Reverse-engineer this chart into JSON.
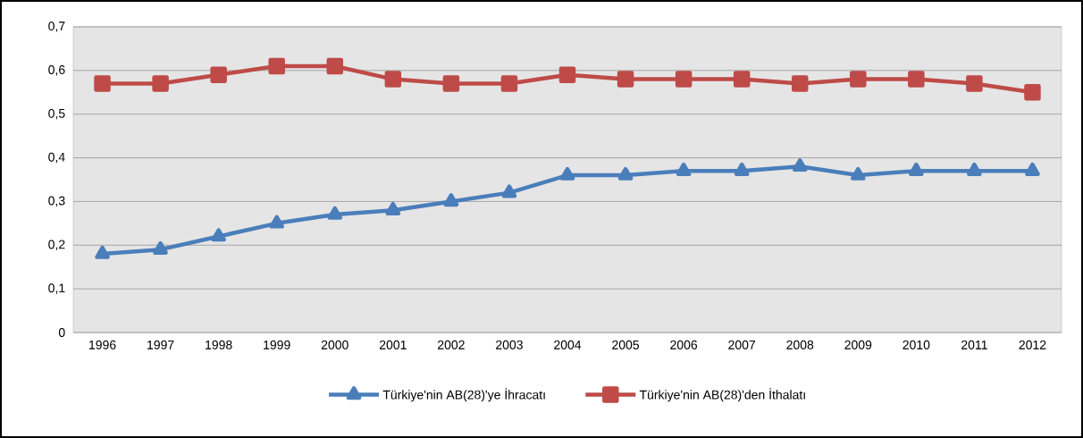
{
  "chart_data": {
    "type": "line",
    "categories": [
      "1996",
      "1997",
      "1998",
      "1999",
      "2000",
      "2001",
      "2002",
      "2003",
      "2004",
      "2005",
      "2006",
      "2007",
      "2008",
      "2009",
      "2010",
      "2011",
      "2012"
    ],
    "series": [
      {
        "name": "Türkiye'nin AB(28)'ye İhracatı",
        "color": "#4a7ebb",
        "marker": "triangle",
        "values": [
          0.18,
          0.19,
          0.22,
          0.25,
          0.27,
          0.28,
          0.3,
          0.32,
          0.36,
          0.36,
          0.37,
          0.37,
          0.38,
          0.36,
          0.37,
          0.37,
          0.37
        ]
      },
      {
        "name": "Türkiye'nin AB(28)'den İthalatı",
        "color": "#be4b48",
        "marker": "square",
        "values": [
          0.57,
          0.57,
          0.59,
          0.61,
          0.61,
          0.58,
          0.57,
          0.57,
          0.59,
          0.58,
          0.58,
          0.58,
          0.57,
          0.58,
          0.58,
          0.57,
          0.55
        ]
      }
    ],
    "ylim": [
      0,
      0.7
    ],
    "yticks": [
      0,
      {
        "value": 0.1,
        "label": "0,1"
      },
      {
        "value": 0.2,
        "label": "0,2"
      },
      {
        "value": 0.3,
        "label": "0,3"
      },
      {
        "value": 0.4,
        "label": "0,4"
      },
      {
        "value": 0.5,
        "label": "0,5"
      },
      {
        "value": 0.6,
        "label": "0,6"
      },
      {
        "value": 0.7,
        "label": "0,7"
      }
    ],
    "grid": "y",
    "legend": "bottom",
    "line_style": "solid"
  }
}
